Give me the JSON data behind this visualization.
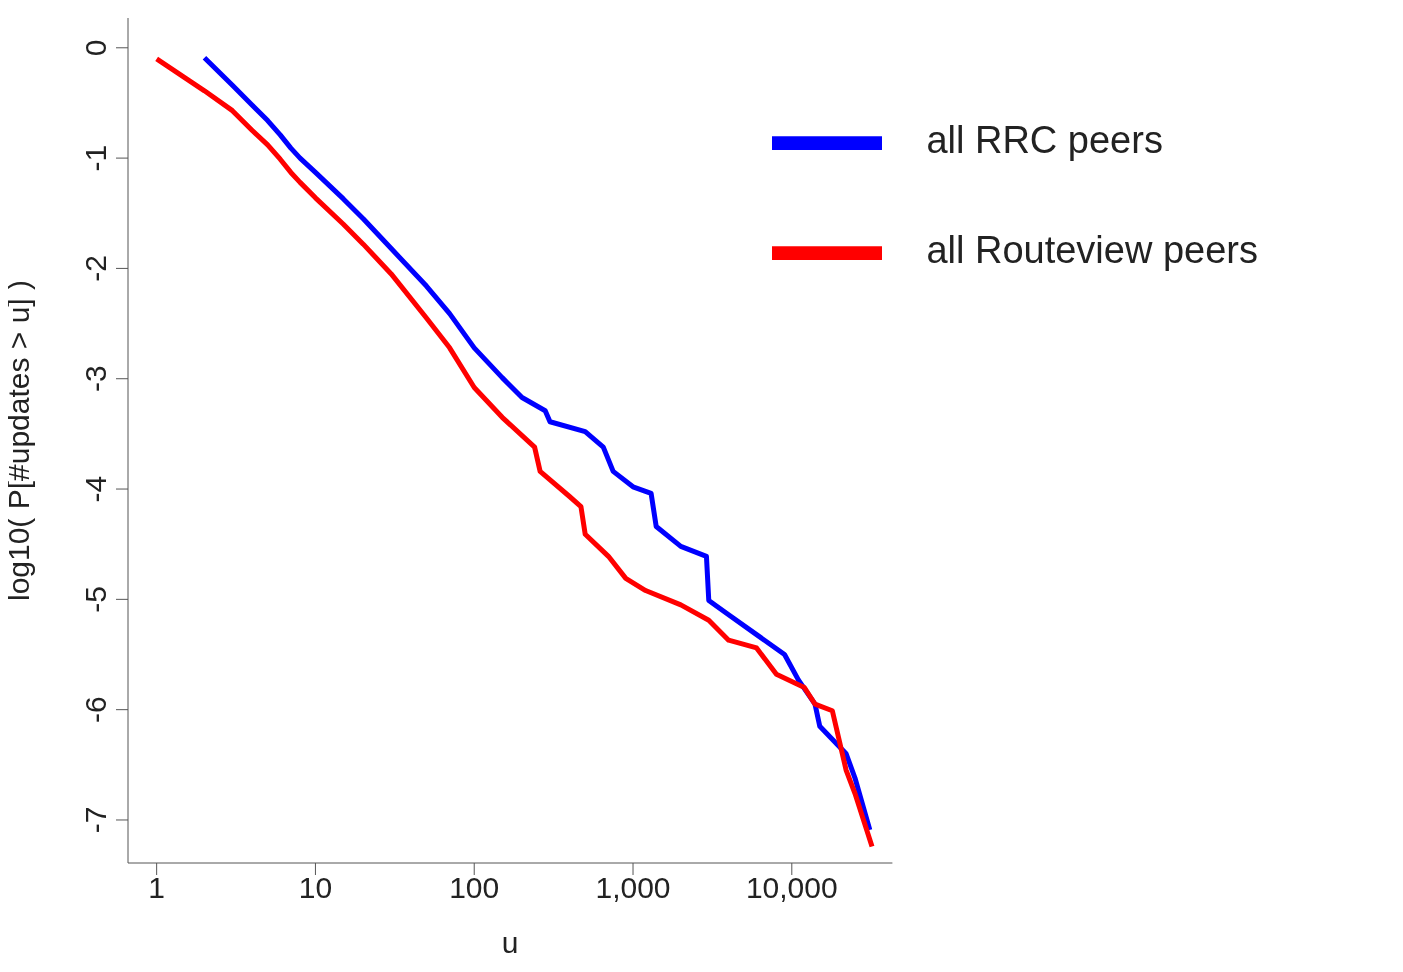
{
  "chart_data": {
    "type": "line",
    "xlabel": "u",
    "ylabel": "log10( P[#updates > u] )",
    "log": "x",
    "xlim": [
      0.66,
      43000
    ],
    "xticks": [
      1,
      10,
      100,
      {
        "value": 1000,
        "label": "1,000"
      },
      {
        "value": 10000,
        "label": "10,000"
      }
    ],
    "ylim": [
      -7.39,
      0.27
    ],
    "yticks": [
      0,
      -1,
      -2,
      -3,
      -4,
      -5,
      -6,
      -7
    ],
    "grid": false,
    "legend": "top right",
    "marker": "none",
    "line_style": "solid",
    "series": [
      {
        "name": "all RRC peers",
        "color": "#0000ff",
        "x": [
          2,
          3,
          4,
          5,
          6,
          7,
          8,
          10,
          15,
          20,
          30,
          50,
          70,
          100,
          150,
          200,
          280,
          300,
          500,
          650,
          750,
          1000,
          1300,
          1400,
          2000,
          2900,
          3000,
          4000,
          6000,
          9000,
          11000,
          14000,
          15000,
          22000,
          25000,
          31000
        ],
        "values": [
          -0.09,
          -0.34,
          -0.52,
          -0.66,
          -0.79,
          -0.91,
          -1.0,
          -1.13,
          -1.37,
          -1.55,
          -1.82,
          -2.16,
          -2.41,
          -2.72,
          -2.99,
          -3.17,
          -3.29,
          -3.39,
          -3.48,
          -3.62,
          -3.84,
          -3.98,
          -4.04,
          -4.34,
          -4.52,
          -4.61,
          -5.01,
          -5.14,
          -5.32,
          -5.5,
          -5.73,
          -5.95,
          -6.15,
          -6.4,
          -6.62,
          -7.09
        ]
      },
      {
        "name": "all Routeview peers",
        "color": "#ff0000",
        "x": [
          1,
          2,
          3,
          4,
          5,
          6,
          7,
          8,
          10,
          15,
          20,
          30,
          50,
          70,
          100,
          150,
          240,
          260,
          400,
          470,
          500,
          700,
          900,
          1200,
          2000,
          3000,
          4000,
          6000,
          8000,
          12000,
          14000,
          18000,
          22000,
          25000,
          32000
        ],
        "values": [
          -0.1,
          -0.39,
          -0.57,
          -0.75,
          -0.88,
          -1.01,
          -1.13,
          -1.22,
          -1.36,
          -1.6,
          -1.78,
          -2.05,
          -2.45,
          -2.72,
          -3.08,
          -3.35,
          -3.62,
          -3.84,
          -4.07,
          -4.16,
          -4.41,
          -4.61,
          -4.81,
          -4.92,
          -5.05,
          -5.19,
          -5.37,
          -5.44,
          -5.68,
          -5.8,
          -5.95,
          -6.01,
          -6.55,
          -6.76,
          -7.24
        ]
      }
    ]
  }
}
